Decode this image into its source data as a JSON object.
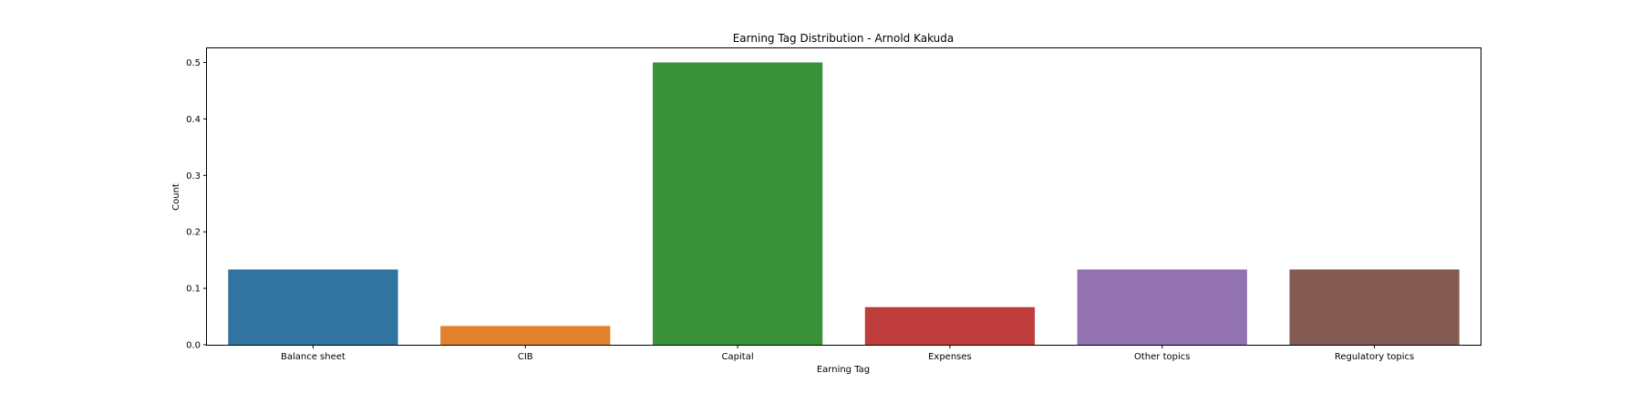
{
  "chart_data": {
    "type": "bar",
    "title": "Earning Tag Distribution - Arnold Kakuda",
    "xlabel": "Earning Tag",
    "ylabel": "Count",
    "categories": [
      "Balance sheet",
      "CIB",
      "Capital",
      "Expenses",
      "Other topics",
      "Regulatory topics"
    ],
    "values": [
      0.1333,
      0.0333,
      0.5,
      0.0667,
      0.1333,
      0.1333
    ],
    "colors": [
      "#3274a1",
      "#e1812c",
      "#3a923a",
      "#c03d3e",
      "#9372b2",
      "#845b53"
    ],
    "ylim": [
      0,
      0.525
    ],
    "yticks": [
      0.0,
      0.1,
      0.2,
      0.3,
      0.4,
      0.5
    ],
    "ytick_labels": [
      "0.0",
      "0.1",
      "0.2",
      "0.3",
      "0.4",
      "0.5"
    ],
    "grid": false,
    "legend": "none"
  }
}
